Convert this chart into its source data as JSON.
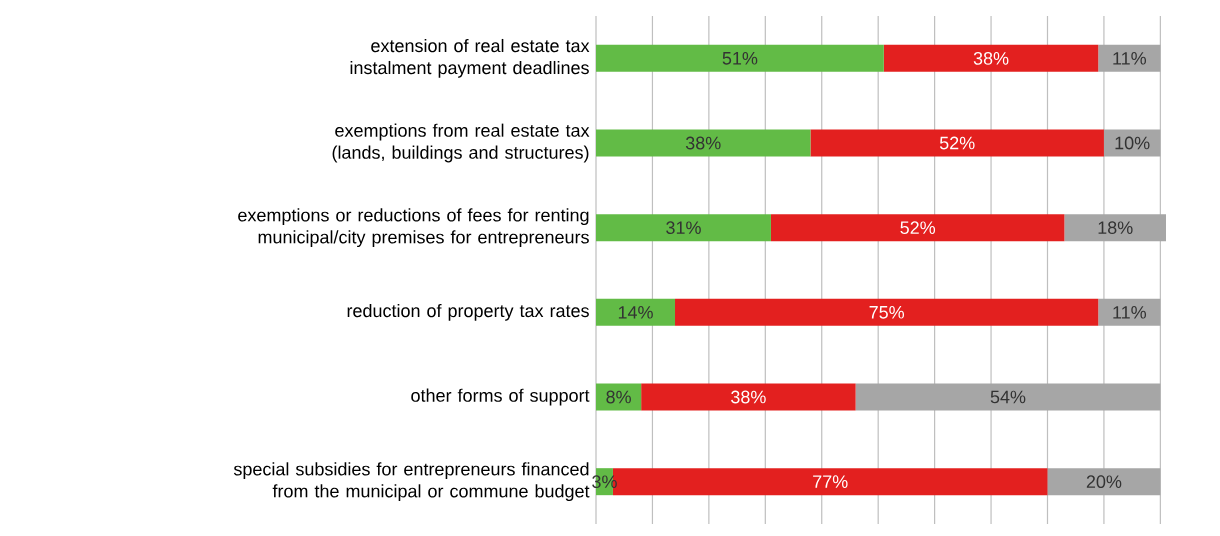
{
  "chart_data": {
    "type": "bar",
    "orientation": "horizontal",
    "stacked": true,
    "categories": [
      "extension of real estate tax instalment payment deadlines",
      "exemptions from real estate tax (lands, buildings and structures)",
      "exemptions or reductions of fees for renting municipal/city premises for entrepreneurs",
      "reduction of property tax rates",
      "other forms of support",
      "special subsidies for entrepreneurs financed from the municipal or commune budget"
    ],
    "series": [
      {
        "color": "#62bb46",
        "values": [
          51,
          38,
          31,
          14,
          8,
          3
        ],
        "value_labels": [
          "51%",
          "38%",
          "31%",
          "14%",
          "8%",
          "3%"
        ]
      },
      {
        "color": "#e3201f",
        "values": [
          38,
          52,
          52,
          75,
          38,
          77
        ],
        "value_labels": [
          "38%",
          "52%",
          "52%",
          "75%",
          "38%",
          "77%"
        ]
      },
      {
        "color": "#a6a6a6",
        "values": [
          11,
          10,
          18,
          11,
          54,
          20
        ],
        "value_labels": [
          "11%",
          "10%",
          "18%",
          "11%",
          "54%",
          "20%"
        ]
      }
    ],
    "xlim": [
      0,
      101
    ],
    "xticks": [
      {
        "value": 0,
        "label": null
      },
      {
        "value": 10,
        "label": null
      },
      {
        "value": 20,
        "label": null
      },
      {
        "value": 30,
        "label": null
      },
      {
        "value": 40,
        "label": null
      },
      {
        "value": 50,
        "label": null
      },
      {
        "value": 60,
        "label": null
      },
      {
        "value": 70,
        "label": null
      },
      {
        "value": 80,
        "label": null
      },
      {
        "value": 90,
        "label": null
      },
      {
        "value": 100,
        "label": null
      }
    ],
    "grid": "x",
    "tick_labels": "y"
  }
}
